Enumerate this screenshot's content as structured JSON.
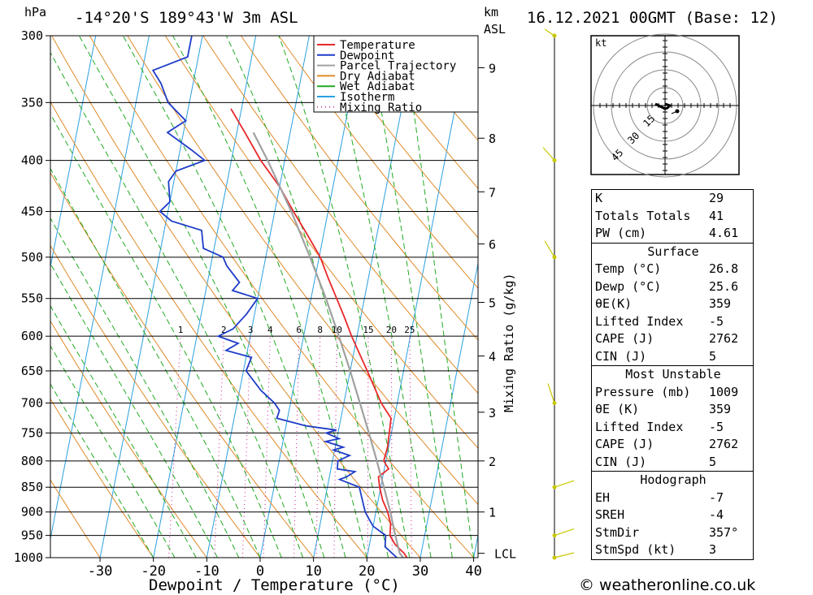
{
  "header": {
    "location": "-14°20'S  189°43'W  3m  ASL",
    "datetime": "16.12.2021  00GMT  (Base: 12)",
    "hpa_unit": "hPa",
    "km_unit": "km",
    "asl_unit": "ASL"
  },
  "chart_data": {
    "type": "line",
    "title": "Skew-T log-P diagram",
    "xlabel": "Dewpoint / Temperature (°C)",
    "ylabel": "hPa",
    "right_label": "Mixing Ratio (g/kg)",
    "x_ticks": [
      "-30",
      "-20",
      "-10",
      "0",
      "10",
      "20",
      "30",
      "40"
    ],
    "x_tick_values": [
      -30,
      -20,
      -10,
      0,
      10,
      20,
      30,
      40
    ],
    "xlim": [
      -40,
      40
    ],
    "ylim": [
      1000,
      300
    ],
    "pressure_levels": [
      300,
      350,
      400,
      450,
      500,
      550,
      600,
      650,
      700,
      750,
      800,
      850,
      900,
      950,
      1000
    ],
    "pressure_labels": [
      "300",
      "350",
      "400",
      "450",
      "500",
      "550",
      "600",
      "650",
      "700",
      "750",
      "800",
      "850",
      "900",
      "950",
      "1000"
    ],
    "km_ticks": [
      {
        "label": "9",
        "p": 323
      },
      {
        "label": "8",
        "p": 380
      },
      {
        "label": "7",
        "p": 430
      },
      {
        "label": "6",
        "p": 485
      },
      {
        "label": "5",
        "p": 555
      },
      {
        "label": "4",
        "p": 628
      },
      {
        "label": "3",
        "p": 715
      },
      {
        "label": "2",
        "p": 800
      },
      {
        "label": "1",
        "p": 900
      }
    ],
    "lcl": {
      "label": "LCL",
      "p": 990
    },
    "mixing_ratio_labels": [
      {
        "label": "1",
        "value": 1
      },
      {
        "label": "2",
        "value": 2
      },
      {
        "label": "3",
        "value": 3
      },
      {
        "label": "4",
        "value": 4
      },
      {
        "label": "6",
        "value": 6
      },
      {
        "label": "8",
        "value": 8
      },
      {
        "label": "10",
        "value": 10
      },
      {
        "label": "15",
        "value": 15
      },
      {
        "label": "20",
        "value": 20
      },
      {
        "label": "25",
        "value": 25
      }
    ],
    "legend": [
      "Temperature",
      "Dewpoint",
      "Parcel Trajectory",
      "Dry Adiabat",
      "Wet Adiabat",
      "Isotherm",
      "Mixing Ratio"
    ],
    "series": [
      {
        "name": "Temperature",
        "color": "#e8282a",
        "points": [
          [
            1000,
            27.5
          ],
          [
            990,
            26.8
          ],
          [
            970,
            24.8
          ],
          [
            950,
            23.5
          ],
          [
            925,
            23.2
          ],
          [
            900,
            22.2
          ],
          [
            875,
            20.8
          ],
          [
            850,
            19.8
          ],
          [
            830,
            19.2
          ],
          [
            815,
            20.8
          ],
          [
            800,
            19.6
          ],
          [
            775,
            19.8
          ],
          [
            750,
            19.6
          ],
          [
            725,
            19.4
          ],
          [
            700,
            17.0
          ],
          [
            650,
            13.2
          ],
          [
            600,
            9.0
          ],
          [
            575,
            7.0
          ],
          [
            550,
            4.8
          ],
          [
            525,
            2.5
          ],
          [
            500,
            0.2
          ],
          [
            475,
            -3.0
          ],
          [
            450,
            -6.5
          ],
          [
            425,
            -10.0
          ],
          [
            400,
            -14.5
          ],
          [
            375,
            -18.5
          ],
          [
            355,
            -22.0
          ]
        ]
      },
      {
        "name": "Dewpoint",
        "color": "#1e3cc8",
        "points": [
          [
            1000,
            25.6
          ],
          [
            975,
            23.0
          ],
          [
            950,
            22.7
          ],
          [
            930,
            20.0
          ],
          [
            915,
            19.0
          ],
          [
            900,
            18.0
          ],
          [
            875,
            17.0
          ],
          [
            850,
            16.0
          ],
          [
            835,
            12.0
          ],
          [
            830,
            13.2
          ],
          [
            820,
            14.6
          ],
          [
            815,
            11.2
          ],
          [
            800,
            11.0
          ],
          [
            790,
            13.0
          ],
          [
            780,
            9.8
          ],
          [
            775,
            11.5
          ],
          [
            765,
            8.0
          ],
          [
            760,
            10.4
          ],
          [
            750,
            7.8
          ],
          [
            745,
            9.6
          ],
          [
            738,
            3.8
          ],
          [
            725,
            -2.0
          ],
          [
            712,
            -1.8
          ],
          [
            700,
            -3.0
          ],
          [
            680,
            -6.0
          ],
          [
            650,
            -9.5
          ],
          [
            630,
            -9.0
          ],
          [
            620,
            -14.0
          ],
          [
            610,
            -12.0
          ],
          [
            600,
            -16.0
          ],
          [
            590,
            -13.5
          ],
          [
            570,
            -11.5
          ],
          [
            550,
            -10.0
          ],
          [
            540,
            -15.0
          ],
          [
            530,
            -14.0
          ],
          [
            510,
            -17.0
          ],
          [
            500,
            -18.0
          ],
          [
            490,
            -22.0
          ],
          [
            470,
            -23.0
          ],
          [
            460,
            -29.0
          ],
          [
            450,
            -31.5
          ],
          [
            440,
            -30.0
          ],
          [
            420,
            -31.0
          ],
          [
            410,
            -30.0
          ],
          [
            400,
            -25.0
          ],
          [
            390,
            -28.0
          ],
          [
            375,
            -33.0
          ],
          [
            365,
            -30.0
          ],
          [
            350,
            -34.0
          ],
          [
            335,
            -36.0
          ],
          [
            325,
            -38.0
          ],
          [
            315,
            -32.0
          ],
          [
            300,
            -32.0
          ]
        ]
      },
      {
        "name": "Parcel Trajectory",
        "color": "#a0a0a0",
        "points": [
          [
            1000,
            26.8
          ],
          [
            990,
            26.0
          ],
          [
            950,
            24.5
          ],
          [
            900,
            22.7
          ],
          [
            850,
            20.6
          ],
          [
            800,
            18.3
          ],
          [
            750,
            15.8
          ],
          [
            700,
            13.0
          ],
          [
            650,
            10.0
          ],
          [
            600,
            6.6
          ],
          [
            550,
            2.8
          ],
          [
            500,
            -1.7
          ],
          [
            450,
            -6.9
          ],
          [
            400,
            -13.2
          ],
          [
            375,
            -16.9
          ]
        ]
      }
    ],
    "hodograph": {
      "unit": "kt",
      "rings": [
        "15",
        "30",
        "45"
      ]
    }
  },
  "tables": [
    {
      "header": "",
      "rows": [
        {
          "label": "K",
          "value": "29"
        },
        {
          "label": "Totals Totals",
          "value": "41"
        },
        {
          "label": "PW (cm)",
          "value": "4.61"
        }
      ]
    },
    {
      "header": "Surface",
      "rows": [
        {
          "label": "Temp (°C)",
          "value": "26.8"
        },
        {
          "label": "Dewp (°C)",
          "value": "25.6"
        },
        {
          "label": "θE(K)",
          "value": "359"
        },
        {
          "label": "Lifted Index",
          "value": "-5"
        },
        {
          "label": "CAPE (J)",
          "value": "2762"
        },
        {
          "label": "CIN (J)",
          "value": "5"
        }
      ]
    },
    {
      "header": "Most Unstable",
      "rows": [
        {
          "label": "Pressure (mb)",
          "value": "1009"
        },
        {
          "label": "θE (K)",
          "value": "359"
        },
        {
          "label": "Lifted Index",
          "value": "-5"
        },
        {
          "label": "CAPE (J)",
          "value": "2762"
        },
        {
          "label": "CIN (J)",
          "value": "5"
        }
      ]
    },
    {
      "header": "Hodograph",
      "rows": [
        {
          "label": "EH",
          "value": "-7"
        },
        {
          "label": "SREH",
          "value": "-4"
        },
        {
          "label": "StmDir",
          "value": "357°"
        },
        {
          "label": "StmSpd (kt)",
          "value": "3"
        }
      ]
    }
  ],
  "footer": {
    "copyright": "© weatheronline.co.uk"
  },
  "colors": {
    "temperature": "#e8282a",
    "dewpoint": "#1e3cc8",
    "parcel": "#a0a0a0",
    "dry_adiabat": "#e08a28",
    "wet_adiabat": "#22aa22",
    "isotherm": "#2aa0e0",
    "mixing_ratio": "#d0209a",
    "wind_barb": "#c8c800"
  }
}
